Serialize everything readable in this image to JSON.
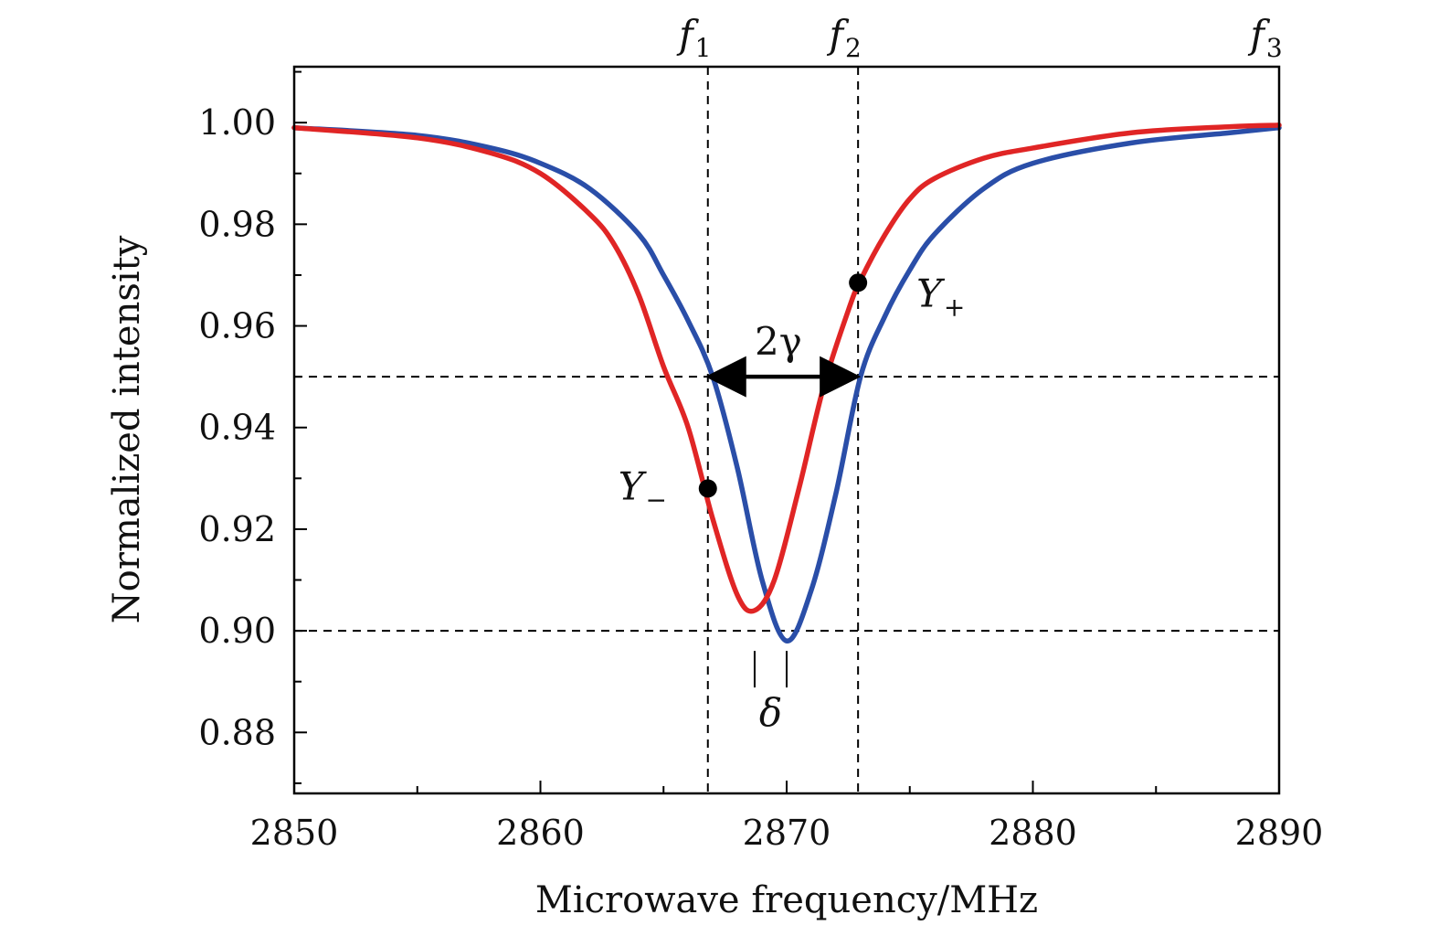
{
  "chart_data": {
    "type": "line",
    "title": "",
    "xlabel": "Microwave frequency/MHz",
    "ylabel": "Normalized intensity",
    "xlim": [
      2850,
      2890
    ],
    "ylim": [
      0.868,
      1.011
    ],
    "x_ticks": [
      2850,
      2860,
      2870,
      2880,
      2890
    ],
    "x_tick_labels": [
      "2850",
      "2860",
      "2870",
      "2880",
      "2890"
    ],
    "y_ticks": [
      0.88,
      0.9,
      0.92,
      0.94,
      0.96,
      0.98,
      1.0
    ],
    "y_tick_labels": [
      "0.88",
      "0.90",
      "0.92",
      "0.94",
      "0.96",
      "0.98",
      "1.00"
    ],
    "grid": false,
    "series": [
      {
        "color": "#2a4ea8",
        "x": [
          2850,
          2855,
          2858,
          2860,
          2862,
          2864,
          2865,
          2866,
          2867,
          2868,
          2869,
          2870,
          2871,
          2872,
          2873,
          2874,
          2875,
          2876,
          2878,
          2880,
          2884,
          2888,
          2890
        ],
        "values": [
          0.999,
          0.9975,
          0.995,
          0.992,
          0.987,
          0.978,
          0.97,
          0.961,
          0.95,
          0.932,
          0.91,
          0.898,
          0.908,
          0.927,
          0.95,
          0.962,
          0.971,
          0.978,
          0.987,
          0.992,
          0.996,
          0.998,
          0.999
        ]
      },
      {
        "color": "#e02525",
        "x": [
          2850,
          2855,
          2858,
          2860,
          2862,
          2863,
          2864,
          2865,
          2866,
          2867,
          2868,
          2868.7,
          2869.5,
          2870.5,
          2871.5,
          2872.5,
          2873,
          2874,
          2875,
          2876,
          2878,
          2880,
          2884,
          2888,
          2890
        ],
        "values": [
          0.999,
          0.997,
          0.994,
          0.99,
          0.982,
          0.976,
          0.966,
          0.952,
          0.94,
          0.922,
          0.907,
          0.904,
          0.91,
          0.928,
          0.948,
          0.963,
          0.969,
          0.978,
          0.985,
          0.989,
          0.993,
          0.995,
          0.998,
          0.9992,
          0.9995
        ]
      }
    ],
    "reference_lines": {
      "vertical": [
        2866.8,
        2872.9
      ],
      "horizontal": [
        0.95,
        0.9
      ]
    },
    "annotations": {
      "f1": {
        "letter": "f",
        "sub": "1",
        "x": 2866.8
      },
      "f2": {
        "letter": "f",
        "sub": "2",
        "x": 2872.9
      },
      "f3": {
        "letter": "f",
        "sub": "3",
        "x": 2890
      },
      "two_gamma": {
        "text": "2γ",
        "x_from": 2866.8,
        "x_to": 2872.9,
        "y": 0.95
      },
      "y_minus": {
        "letter": "Y",
        "sub": "−",
        "x": 2866.8,
        "y": 0.928
      },
      "y_plus": {
        "letter": "Y",
        "sub": "+",
        "x": 2872.9,
        "y": 0.9685
      },
      "delta": {
        "text": "δ",
        "x_from": 2868.7,
        "x_to": 2870.0
      }
    }
  }
}
